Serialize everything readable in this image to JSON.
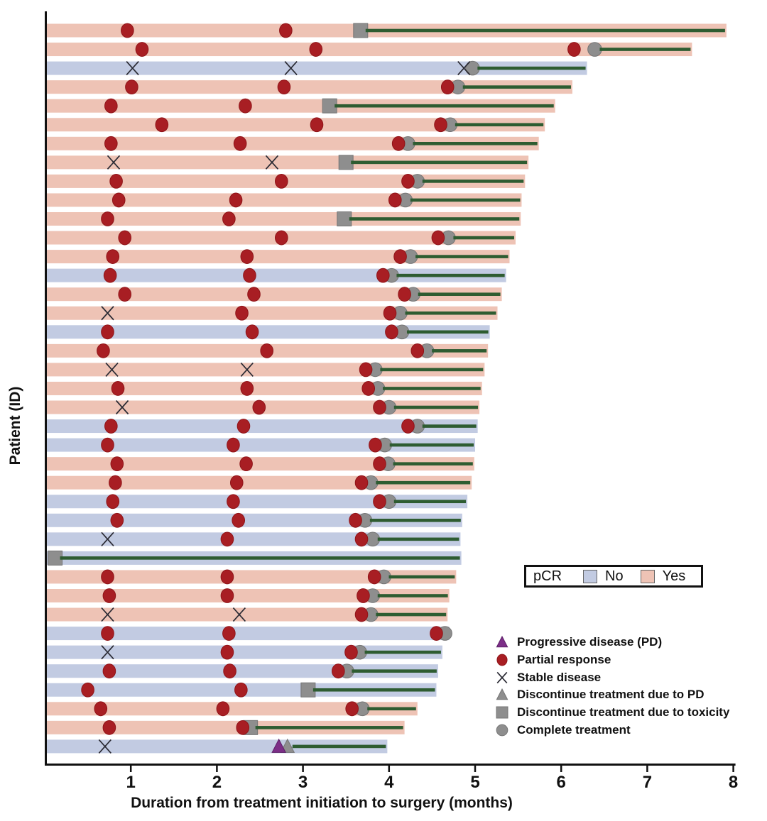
{
  "chart_data": {
    "type": "swimmer",
    "title": "",
    "xlabel": "Duration from treatment initiation to surgery (months)",
    "ylabel": "Patient (ID)",
    "xlim": [
      0,
      8
    ],
    "xticks": [
      1,
      2,
      3,
      4,
      5,
      6,
      7,
      8
    ],
    "grid": false,
    "colors": {
      "pcr_no": "#c2cbe2",
      "pcr_yes": "#eec3b5",
      "partial_response": "#a81e23",
      "partial_response_edge": "#8f1418",
      "stable_disease": "#2a2a33",
      "gray_marker": "#8e8e8e",
      "gray_marker_edge": "#757575",
      "progressive_disease": "#7c2e87",
      "progressive_disease_edge": "#5d1f68",
      "surgery_line": "#2e5c31",
      "axis": "#111111"
    },
    "event_types": {
      "pr": "Partial response",
      "sd": "Stable disease",
      "pd": "Progressive disease (PD)",
      "disc_pd": "Discontinue treatment due to PD",
      "tox": "Discontinue treatment due to toxicity",
      "complete": "Complete treatment"
    },
    "patients": [
      {
        "pcr": "Yes",
        "end": 7.92,
        "events": [
          [
            "pr",
            0.96
          ],
          [
            "pr",
            2.8
          ]
        ],
        "stop": [
          "tox",
          3.67
        ]
      },
      {
        "pcr": "Yes",
        "end": 7.52,
        "events": [
          [
            "pr",
            1.13
          ],
          [
            "pr",
            3.15
          ],
          [
            "pr",
            6.15
          ]
        ],
        "stop": [
          "complete",
          6.39
        ]
      },
      {
        "pcr": "No",
        "end": 6.3,
        "events": [
          [
            "sd",
            1.02
          ],
          [
            "sd",
            2.86
          ],
          [
            "sd",
            4.87
          ]
        ],
        "stop": [
          "complete",
          4.97
        ]
      },
      {
        "pcr": "Yes",
        "end": 6.13,
        "events": [
          [
            "pr",
            1.01
          ],
          [
            "pr",
            2.78
          ],
          [
            "pr",
            4.68
          ]
        ],
        "stop": [
          "complete",
          4.8
        ]
      },
      {
        "pcr": "Yes",
        "end": 5.93,
        "events": [
          [
            "pr",
            0.77
          ],
          [
            "pr",
            2.33
          ]
        ],
        "stop": [
          "tox",
          3.31
        ]
      },
      {
        "pcr": "Yes",
        "end": 5.81,
        "events": [
          [
            "pr",
            1.36
          ],
          [
            "pr",
            3.16
          ],
          [
            "pr",
            4.6
          ]
        ],
        "stop": [
          "complete",
          4.71
        ]
      },
      {
        "pcr": "Yes",
        "end": 5.74,
        "events": [
          [
            "pr",
            0.77
          ],
          [
            "pr",
            2.27
          ],
          [
            "pr",
            4.11
          ]
        ],
        "stop": [
          "complete",
          4.22
        ]
      },
      {
        "pcr": "Yes",
        "end": 5.62,
        "events": [
          [
            "sd",
            0.8
          ],
          [
            "sd",
            2.64
          ]
        ],
        "stop": [
          "tox",
          3.5
        ]
      },
      {
        "pcr": "Yes",
        "end": 5.58,
        "events": [
          [
            "pr",
            0.83
          ],
          [
            "pr",
            2.75
          ],
          [
            "pr",
            4.22
          ]
        ],
        "stop": [
          "complete",
          4.33
        ]
      },
      {
        "pcr": "Yes",
        "end": 5.54,
        "events": [
          [
            "pr",
            0.86
          ],
          [
            "pr",
            2.22
          ],
          [
            "pr",
            4.07
          ]
        ],
        "stop": [
          "complete",
          4.19
        ]
      },
      {
        "pcr": "Yes",
        "end": 5.53,
        "events": [
          [
            "pr",
            0.73
          ],
          [
            "pr",
            2.14
          ]
        ],
        "stop": [
          "tox",
          3.48
        ]
      },
      {
        "pcr": "Yes",
        "end": 5.47,
        "events": [
          [
            "pr",
            0.93
          ],
          [
            "pr",
            2.75
          ],
          [
            "pr",
            4.57
          ]
        ],
        "stop": [
          "complete",
          4.69
        ]
      },
      {
        "pcr": "Yes",
        "end": 5.4,
        "events": [
          [
            "pr",
            0.79
          ],
          [
            "pr",
            2.35
          ],
          [
            "pr",
            4.13
          ]
        ],
        "stop": [
          "complete",
          4.25
        ]
      },
      {
        "pcr": "No",
        "end": 5.36,
        "events": [
          [
            "pr",
            0.76
          ],
          [
            "pr",
            2.38
          ],
          [
            "pr",
            3.93
          ]
        ],
        "stop": [
          "complete",
          4.03
        ]
      },
      {
        "pcr": "Yes",
        "end": 5.31,
        "events": [
          [
            "pr",
            0.93
          ],
          [
            "pr",
            2.43
          ],
          [
            "pr",
            4.18
          ]
        ],
        "stop": [
          "complete",
          4.28
        ]
      },
      {
        "pcr": "Yes",
        "end": 5.26,
        "events": [
          [
            "sd",
            0.73
          ],
          [
            "pr",
            2.29
          ],
          [
            "pr",
            4.01
          ]
        ],
        "stop": [
          "complete",
          4.13
        ]
      },
      {
        "pcr": "No",
        "end": 5.17,
        "events": [
          [
            "pr",
            0.73
          ],
          [
            "pr",
            2.41
          ],
          [
            "pr",
            4.03
          ]
        ],
        "stop": [
          "complete",
          4.15
        ]
      },
      {
        "pcr": "Yes",
        "end": 5.15,
        "events": [
          [
            "pr",
            0.68
          ],
          [
            "pr",
            2.58
          ],
          [
            "pr",
            4.33
          ]
        ],
        "stop": [
          "complete",
          4.44
        ]
      },
      {
        "pcr": "Yes",
        "end": 5.11,
        "events": [
          [
            "sd",
            0.78
          ],
          [
            "sd",
            2.35
          ],
          [
            "pr",
            3.73
          ]
        ],
        "stop": [
          "complete",
          3.84
        ]
      },
      {
        "pcr": "Yes",
        "end": 5.08,
        "events": [
          [
            "pr",
            0.85
          ],
          [
            "pr",
            2.35
          ],
          [
            "pr",
            3.76
          ]
        ],
        "stop": [
          "complete",
          3.87
        ]
      },
      {
        "pcr": "Yes",
        "end": 5.05,
        "events": [
          [
            "sd",
            0.9
          ],
          [
            "pr",
            2.49
          ],
          [
            "pr",
            3.89
          ]
        ],
        "stop": [
          "complete",
          4.0
        ]
      },
      {
        "pcr": "No",
        "end": 5.03,
        "events": [
          [
            "pr",
            0.77
          ],
          [
            "pr",
            2.31
          ],
          [
            "pr",
            4.22
          ]
        ],
        "stop": [
          "complete",
          4.33
        ]
      },
      {
        "pcr": "No",
        "end": 5.0,
        "events": [
          [
            "pr",
            0.73
          ],
          [
            "pr",
            2.19
          ],
          [
            "pr",
            3.84
          ]
        ],
        "stop": [
          "complete",
          3.95
        ]
      },
      {
        "pcr": "Yes",
        "end": 4.99,
        "events": [
          [
            "pr",
            0.84
          ],
          [
            "pr",
            2.34
          ],
          [
            "pr",
            3.89
          ]
        ],
        "stop": [
          "complete",
          3.99
        ]
      },
      {
        "pcr": "Yes",
        "end": 4.96,
        "events": [
          [
            "pr",
            0.82
          ],
          [
            "pr",
            2.23
          ],
          [
            "pr",
            3.68
          ]
        ],
        "stop": [
          "complete",
          3.79
        ]
      },
      {
        "pcr": "No",
        "end": 4.91,
        "events": [
          [
            "pr",
            0.79
          ],
          [
            "pr",
            2.19
          ],
          [
            "pr",
            3.89
          ]
        ],
        "stop": [
          "complete",
          4.0
        ]
      },
      {
        "pcr": "No",
        "end": 4.85,
        "events": [
          [
            "pr",
            0.84
          ],
          [
            "pr",
            2.25
          ],
          [
            "pr",
            3.61
          ]
        ],
        "stop": [
          "complete",
          3.72
        ]
      },
      {
        "pcr": "No",
        "end": 4.83,
        "events": [
          [
            "sd",
            0.73
          ],
          [
            "pr",
            2.12
          ],
          [
            "pr",
            3.68
          ]
        ],
        "stop": [
          "complete",
          3.81
        ]
      },
      {
        "pcr": "No",
        "end": 4.84,
        "events": [],
        "stop": [
          "tox",
          0.12
        ]
      },
      {
        "pcr": "Yes",
        "end": 4.78,
        "events": [
          [
            "pr",
            0.73
          ],
          [
            "pr",
            2.12
          ],
          [
            "pr",
            3.83
          ]
        ],
        "stop": [
          "complete",
          3.94
        ]
      },
      {
        "pcr": "Yes",
        "end": 4.7,
        "events": [
          [
            "pr",
            0.75
          ],
          [
            "pr",
            2.12
          ],
          [
            "pr",
            3.7
          ]
        ],
        "stop": [
          "complete",
          3.81
        ]
      },
      {
        "pcr": "Yes",
        "end": 4.68,
        "events": [
          [
            "sd",
            0.73
          ],
          [
            "sd",
            2.26
          ],
          [
            "pr",
            3.68
          ]
        ],
        "stop": [
          "complete",
          3.79
        ]
      },
      {
        "pcr": "No",
        "end": 4.7,
        "events": [
          [
            "pr",
            0.73
          ],
          [
            "pr",
            2.14
          ],
          [
            "pr",
            4.55
          ]
        ],
        "stop": [
          "complete",
          4.65
        ]
      },
      {
        "pcr": "No",
        "end": 4.62,
        "events": [
          [
            "sd",
            0.73
          ],
          [
            "pr",
            2.12
          ],
          [
            "pr",
            3.56
          ]
        ],
        "stop": [
          "complete",
          3.66
        ]
      },
      {
        "pcr": "No",
        "end": 4.57,
        "events": [
          [
            "pr",
            0.75
          ],
          [
            "pr",
            2.15
          ],
          [
            "pr",
            3.41
          ]
        ],
        "stop": [
          "complete",
          3.51
        ]
      },
      {
        "pcr": "No",
        "end": 4.55,
        "events": [
          [
            "pr",
            0.5
          ],
          [
            "pr",
            2.28
          ]
        ],
        "stop": [
          "tox",
          3.06
        ]
      },
      {
        "pcr": "Yes",
        "end": 4.33,
        "events": [
          [
            "pr",
            0.65
          ],
          [
            "pr",
            2.07
          ],
          [
            "pr",
            3.57
          ]
        ],
        "stop": [
          "complete",
          3.69
        ]
      },
      {
        "pcr": "Yes",
        "end": 4.18,
        "events": [
          [
            "pr",
            0.75
          ],
          [
            "pr",
            2.3
          ]
        ],
        "stop": [
          "tox",
          2.39
        ]
      },
      {
        "pcr": "No",
        "end": 3.98,
        "events": [
          [
            "sd",
            0.7
          ],
          [
            "pd",
            2.72
          ]
        ],
        "stop": [
          "disc_pd",
          2.82
        ]
      }
    ]
  },
  "pcr_legend": {
    "label": "pCR",
    "items": [
      {
        "label": "No",
        "color": "#c2cbe2"
      },
      {
        "label": "Yes",
        "color": "#eec3b5"
      }
    ]
  },
  "marker_legend": [
    {
      "type": "pd",
      "label": "Progressive disease (PD)"
    },
    {
      "type": "pr",
      "label": "Partial response"
    },
    {
      "type": "sd",
      "label": "Stable disease"
    },
    {
      "type": "disc_pd",
      "label": "Discontinue treatment due to PD"
    },
    {
      "type": "tox",
      "label": "Discontinue treatment due to toxicity"
    },
    {
      "type": "complete",
      "label": "Complete treatment"
    }
  ]
}
